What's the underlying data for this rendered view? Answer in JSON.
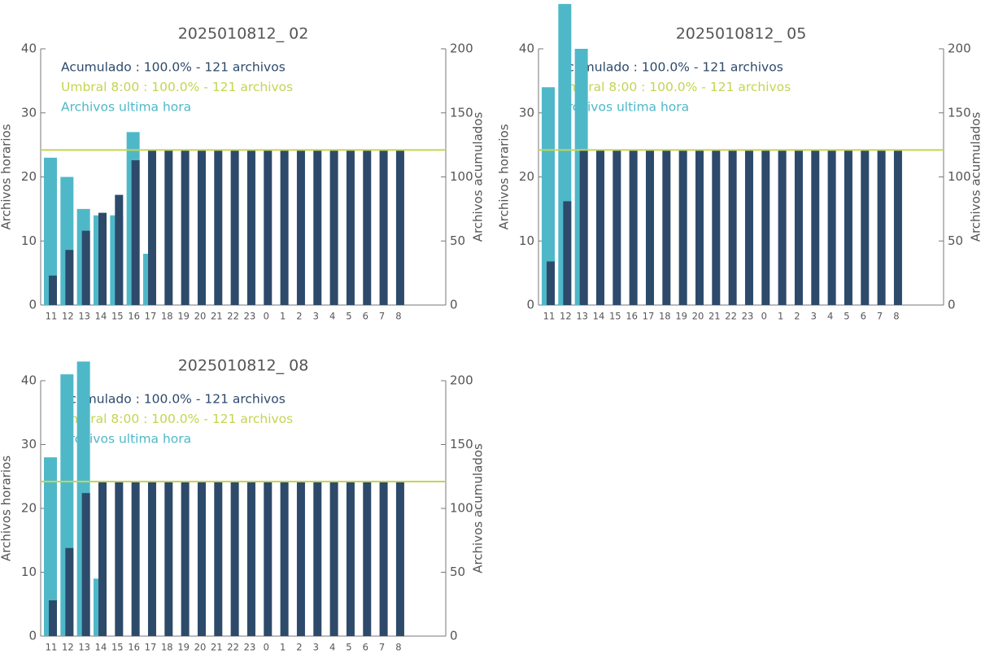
{
  "chart_data": [
    {
      "type": "bar",
      "title": "2025010812_ 02",
      "ylabel": "Archivos horarios",
      "y2label": "Archivos acumulados",
      "categories": [
        "11",
        "12",
        "13",
        "14",
        "15",
        "16",
        "17",
        "18",
        "19",
        "20",
        "21",
        "22",
        "23",
        "0",
        "1",
        "2",
        "3",
        "4",
        "5",
        "6",
        "7",
        "8"
      ],
      "series": [
        {
          "name": "Archivos ultima hora",
          "color": "#4fb8c8",
          "values": [
            23,
            20,
            15,
            14,
            14,
            27,
            8,
            0,
            0,
            0,
            0,
            0,
            0,
            0,
            0,
            0,
            0,
            0,
            0,
            0,
            0,
            0
          ]
        },
        {
          "name": "Acumulado : 100.0% - 121 archivos",
          "color": "#2d4a6a",
          "axis": "y2",
          "values": [
            23,
            43,
            58,
            72,
            86,
            113,
            121,
            121,
            121,
            121,
            121,
            121,
            121,
            121,
            121,
            121,
            121,
            121,
            121,
            121,
            121,
            121
          ]
        }
      ],
      "threshold": {
        "label": "Umbral 8:00 : 100.0% - 121 archivos",
        "value": 121,
        "axis": "y2",
        "color": "#c5d452"
      },
      "ylim": [
        0,
        40
      ],
      "yticks": [
        0,
        10,
        20,
        30,
        40
      ],
      "y2lim": [
        0,
        200
      ],
      "y2ticks": [
        0,
        50,
        100,
        150,
        200
      ]
    },
    {
      "type": "bar",
      "title": "2025010812_ 05",
      "ylabel": "Archivos horarios",
      "y2label": "Archivos acumulados",
      "categories": [
        "11",
        "12",
        "13",
        "14",
        "15",
        "16",
        "17",
        "18",
        "19",
        "20",
        "21",
        "22",
        "23",
        "0",
        "1",
        "2",
        "3",
        "4",
        "5",
        "6",
        "7",
        "8"
      ],
      "series": [
        {
          "name": "Archivos ultima hora",
          "color": "#4fb8c8",
          "values": [
            34,
            47,
            40,
            0,
            0,
            0,
            0,
            0,
            0,
            0,
            0,
            0,
            0,
            0,
            0,
            0,
            0,
            0,
            0,
            0,
            0,
            0
          ]
        },
        {
          "name": "Acumulado : 100.0% - 121 archivos",
          "color": "#2d4a6a",
          "axis": "y2",
          "values": [
            34,
            81,
            121,
            121,
            121,
            121,
            121,
            121,
            121,
            121,
            121,
            121,
            121,
            121,
            121,
            121,
            121,
            121,
            121,
            121,
            121,
            121
          ]
        }
      ],
      "threshold": {
        "label": "Umbral 8:00 : 100.0% - 121 archivos",
        "value": 121,
        "axis": "y2",
        "color": "#c5d452"
      },
      "ylim": [
        0,
        40
      ],
      "yticks": [
        0,
        10,
        20,
        30,
        40
      ],
      "y2lim": [
        0,
        200
      ],
      "y2ticks": [
        0,
        50,
        100,
        150,
        200
      ]
    },
    {
      "type": "bar",
      "title": "2025010812_ 08",
      "ylabel": "Archivos horarios",
      "y2label": "Archivos acumulados",
      "categories": [
        "11",
        "12",
        "13",
        "14",
        "15",
        "16",
        "17",
        "18",
        "19",
        "20",
        "21",
        "22",
        "23",
        "0",
        "1",
        "2",
        "3",
        "4",
        "5",
        "6",
        "7",
        "8"
      ],
      "series": [
        {
          "name": "Archivos ultima hora",
          "color": "#4fb8c8",
          "values": [
            28,
            41,
            43,
            9,
            0,
            0,
            0,
            0,
            0,
            0,
            0,
            0,
            0,
            0,
            0,
            0,
            0,
            0,
            0,
            0,
            0,
            0
          ]
        },
        {
          "name": "Acumulado : 100.0% - 121 archivos",
          "color": "#2d4a6a",
          "axis": "y2",
          "values": [
            28,
            69,
            112,
            121,
            121,
            121,
            121,
            121,
            121,
            121,
            121,
            121,
            121,
            121,
            121,
            121,
            121,
            121,
            121,
            121,
            121,
            121
          ]
        }
      ],
      "threshold": {
        "label": "Umbral 8:00 : 100.0% - 121 archivos",
        "value": 121,
        "axis": "y2",
        "color": "#c5d452"
      },
      "ylim": [
        0,
        40
      ],
      "yticks": [
        0,
        10,
        20,
        30,
        40
      ],
      "y2lim": [
        0,
        200
      ],
      "y2ticks": [
        0,
        50,
        100,
        150,
        200
      ]
    }
  ]
}
